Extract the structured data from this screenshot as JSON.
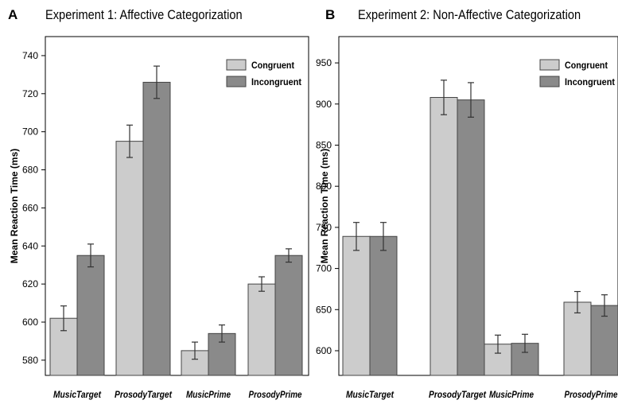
{
  "chart_data": [
    {
      "type": "bar",
      "panel_label": "A",
      "title": "Experiment 1: Affective Categorization",
      "ylabel": "Mean Reaction Time (ms)",
      "xlabel": "",
      "categories": [
        "MusicTarget",
        "ProsodyTarget",
        "MusicPrime",
        "ProsodyPrime"
      ],
      "series": [
        {
          "name": "Congruent",
          "values": [
            602,
            695,
            585,
            620
          ],
          "errors": [
            6.5,
            8.5,
            4.5,
            3.8
          ]
        },
        {
          "name": "Incongruent",
          "values": [
            635,
            726,
            594,
            635
          ],
          "errors": [
            6,
            8.5,
            4.5,
            3.5
          ]
        }
      ],
      "ylim": [
        572,
        750
      ],
      "yticks": [
        580,
        600,
        620,
        640,
        660,
        680,
        700,
        720,
        740
      ],
      "legend_position": "top-right",
      "colors": {
        "Congruent": "#cccccc",
        "Incongruent": "#8a8a8a"
      },
      "grid": false
    },
    {
      "type": "bar",
      "panel_label": "B",
      "title": "Experiment 2: Non-Affective Categorization",
      "ylabel": "Mean Reaction Time (ms)",
      "xlabel": "",
      "categories": [
        "MusicTarget",
        "ProsodyTarget",
        "MusicPrime",
        "ProsodyPrime"
      ],
      "series": [
        {
          "name": "Congruent",
          "values": [
            739,
            908,
            608,
            659
          ],
          "errors": [
            17,
            21,
            11,
            13
          ]
        },
        {
          "name": "Incongruent",
          "values": [
            739,
            905,
            609,
            655
          ],
          "errors": [
            17,
            21,
            11,
            13
          ]
        }
      ],
      "ylim": [
        570,
        982
      ],
      "yticks": [
        600,
        650,
        700,
        750,
        800,
        850,
        900,
        950
      ],
      "legend_position": "top-right",
      "colors": {
        "Congruent": "#cccccc",
        "Incongruent": "#8a8a8a"
      },
      "grid": false
    }
  ]
}
